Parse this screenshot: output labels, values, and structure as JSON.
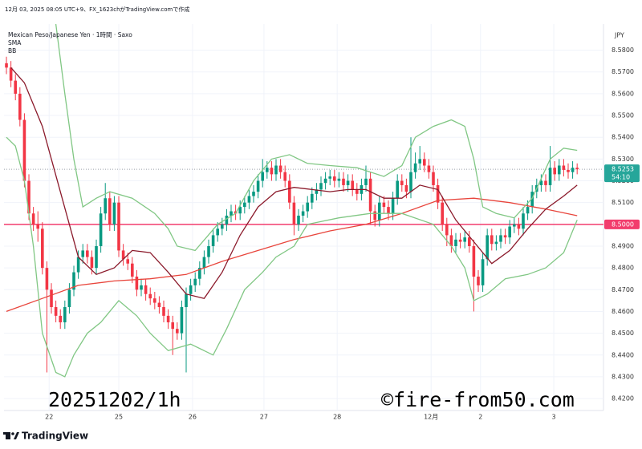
{
  "chart_data": {
    "type": "candlestick",
    "caption": "12月 03, 2025 08:05 UTC+9、FX_1623chがTradingView.comで作成",
    "title": "Mexican Peso/Japanese Yen · 1時間 · Saxo",
    "indicators": [
      "SMA",
      "BB"
    ],
    "y_axis_label": "JPY",
    "annotations": [
      "20251202/1h",
      "©fire-from50.com"
    ],
    "brand": "TradingView",
    "up_color": "#089981",
    "down_color": "#f23645",
    "grid": true,
    "xlim": [
      -0.54,
      132.86
    ],
    "ylim": [
      8.4145,
      8.592
    ],
    "xticks": [
      {
        "value": 9.5,
        "label": "22"
      },
      {
        "value": 25,
        "label": "25"
      },
      {
        "value": 41.4,
        "label": "26"
      },
      {
        "value": 57.3,
        "label": "27"
      },
      {
        "value": 73.6,
        "label": "28"
      },
      {
        "value": 94.5,
        "label": "12月"
      },
      {
        "value": 105.5,
        "label": "2"
      },
      {
        "value": 121.8,
        "label": "3"
      }
    ],
    "yticks": [
      {
        "value": 8.42,
        "label": "8.4200"
      },
      {
        "value": 8.43,
        "label": "8.4300"
      },
      {
        "value": 8.44,
        "label": "8.4400"
      },
      {
        "value": 8.45,
        "label": "8.4500"
      },
      {
        "value": 8.46,
        "label": "8.4600"
      },
      {
        "value": 8.47,
        "label": "8.4700"
      },
      {
        "value": 8.48,
        "label": "8.4800"
      },
      {
        "value": 8.49,
        "label": "8.4900"
      },
      {
        "value": 8.51,
        "label": "8.5100"
      },
      {
        "value": 8.52,
        "label": "8.5200"
      },
      {
        "value": 8.53,
        "label": "8.5300"
      },
      {
        "value": 8.54,
        "label": "8.5400"
      },
      {
        "value": 8.55,
        "label": "8.5500"
      },
      {
        "value": 8.56,
        "label": "8.5600"
      },
      {
        "value": 8.57,
        "label": "8.5700"
      },
      {
        "value": 8.58,
        "label": "8.5800"
      }
    ],
    "open": [
      8.574,
      8.572,
      8.566,
      8.56,
      8.548,
      8.52,
      8.505,
      8.5,
      8.498,
      8.48,
      8.47,
      8.462,
      8.458,
      8.455,
      8.462,
      8.47,
      8.478,
      8.485,
      8.488,
      8.485,
      8.48,
      8.49,
      8.505,
      8.512,
      8.5,
      8.51,
      8.488,
      8.484,
      8.482,
      8.476,
      8.47,
      8.472,
      8.468,
      8.466,
      8.464,
      8.462,
      8.458,
      8.455,
      8.452,
      8.45,
      8.462,
      8.468,
      8.472,
      8.475,
      8.48,
      8.485,
      8.49,
      8.495,
      8.498,
      8.5,
      8.504,
      8.506,
      8.505,
      8.508,
      8.51,
      8.513,
      8.515,
      8.52,
      8.524,
      8.526,
      8.523,
      8.527,
      8.524,
      8.52,
      8.51,
      8.5,
      8.504,
      8.506,
      8.51,
      8.514,
      8.516,
      8.519,
      8.521,
      8.522,
      8.52,
      8.521,
      8.518,
      8.52,
      8.516,
      8.514,
      8.518,
      8.521,
      8.506,
      8.502,
      8.51,
      8.508,
      8.505,
      8.512,
      8.52,
      8.518,
      8.515,
      8.524,
      8.528,
      8.53,
      8.527,
      8.524,
      8.518,
      8.51,
      8.5,
      8.495,
      8.49,
      8.493,
      8.492,
      8.494,
      8.49,
      8.476,
      8.472,
      8.484,
      8.495,
      8.491,
      8.492,
      8.495,
      8.494,
      8.499,
      8.5,
      8.498,
      8.505,
      8.508,
      8.515,
      8.518,
      8.52,
      8.518,
      8.526,
      8.523,
      8.527,
      8.525,
      8.524,
      8.526
    ],
    "high": [
      8.577,
      8.575,
      8.569,
      8.563,
      8.551,
      8.523,
      8.508,
      8.506,
      8.501,
      8.483,
      8.473,
      8.465,
      8.461,
      8.465,
      8.473,
      8.481,
      8.488,
      8.491,
      8.491,
      8.488,
      8.493,
      8.508,
      8.519,
      8.515,
      8.513,
      8.513,
      8.491,
      8.487,
      8.485,
      8.479,
      8.475,
      8.475,
      8.471,
      8.469,
      8.467,
      8.465,
      8.461,
      8.458,
      8.455,
      8.465,
      8.471,
      8.475,
      8.478,
      8.483,
      8.488,
      8.493,
      8.498,
      8.501,
      8.503,
      8.507,
      8.509,
      8.509,
      8.511,
      8.513,
      8.516,
      8.518,
      8.523,
      8.53,
      8.529,
      8.529,
      8.53,
      8.53,
      8.527,
      8.523,
      8.513,
      8.507,
      8.509,
      8.513,
      8.517,
      8.519,
      8.522,
      8.524,
      8.525,
      8.525,
      8.524,
      8.524,
      8.523,
      8.523,
      8.519,
      8.521,
      8.527,
      8.524,
      8.509,
      8.513,
      8.513,
      8.511,
      8.515,
      8.523,
      8.523,
      8.521,
      8.54,
      8.533,
      8.536,
      8.533,
      8.53,
      8.527,
      8.521,
      8.513,
      8.503,
      8.498,
      8.496,
      8.496,
      8.497,
      8.497,
      8.493,
      8.479,
      8.487,
      8.498,
      8.498,
      8.495,
      8.498,
      8.498,
      8.502,
      8.503,
      8.503,
      8.508,
      8.511,
      8.518,
      8.521,
      8.523,
      8.523,
      8.536,
      8.529,
      8.53,
      8.53,
      8.528,
      8.529,
      8.528
    ],
    "low": [
      8.569,
      8.563,
      8.557,
      8.545,
      8.517,
      8.502,
      8.497,
      8.492,
      8.477,
      8.432,
      8.459,
      8.455,
      8.452,
      8.452,
      8.459,
      8.467,
      8.475,
      8.482,
      8.482,
      8.477,
      8.477,
      8.487,
      8.502,
      8.497,
      8.497,
      8.485,
      8.481,
      8.479,
      8.473,
      8.467,
      8.467,
      8.465,
      8.463,
      8.461,
      8.459,
      8.455,
      8.452,
      8.44,
      8.447,
      8.447,
      8.432,
      8.465,
      8.469,
      8.472,
      8.477,
      8.482,
      8.487,
      8.492,
      8.495,
      8.497,
      8.501,
      8.502,
      8.502,
      8.505,
      8.507,
      8.51,
      8.512,
      8.517,
      8.521,
      8.52,
      8.52,
      8.521,
      8.517,
      8.507,
      8.495,
      8.497,
      8.501,
      8.503,
      8.507,
      8.511,
      8.513,
      8.516,
      8.518,
      8.517,
      8.517,
      8.515,
      8.515,
      8.513,
      8.511,
      8.511,
      8.515,
      8.5,
      8.499,
      8.499,
      8.505,
      8.502,
      8.502,
      8.509,
      8.515,
      8.512,
      8.512,
      8.521,
      8.525,
      8.524,
      8.521,
      8.515,
      8.507,
      8.497,
      8.49,
      8.487,
      8.487,
      8.489,
      8.489,
      8.487,
      8.46,
      8.469,
      8.469,
      8.481,
      8.488,
      8.488,
      8.489,
      8.491,
      8.491,
      8.496,
      8.495,
      8.495,
      8.502,
      8.505,
      8.512,
      8.515,
      8.515,
      8.515,
      8.52,
      8.52,
      8.522,
      8.521,
      8.521,
      8.523
    ],
    "close": [
      8.572,
      8.566,
      8.56,
      8.548,
      8.52,
      8.505,
      8.5,
      8.498,
      8.48,
      8.47,
      8.462,
      8.458,
      8.455,
      8.462,
      8.47,
      8.478,
      8.485,
      8.488,
      8.485,
      8.48,
      8.49,
      8.505,
      8.512,
      8.5,
      8.51,
      8.488,
      8.484,
      8.482,
      8.476,
      8.47,
      8.472,
      8.468,
      8.466,
      8.464,
      8.462,
      8.458,
      8.455,
      8.452,
      8.45,
      8.462,
      8.468,
      8.472,
      8.475,
      8.48,
      8.485,
      8.49,
      8.495,
      8.498,
      8.5,
      8.504,
      8.506,
      8.505,
      8.508,
      8.51,
      8.513,
      8.515,
      8.52,
      8.524,
      8.526,
      8.523,
      8.527,
      8.524,
      8.52,
      8.51,
      8.5,
      8.504,
      8.506,
      8.51,
      8.514,
      8.516,
      8.519,
      8.521,
      8.522,
      8.52,
      8.521,
      8.518,
      8.52,
      8.516,
      8.514,
      8.518,
      8.521,
      8.506,
      8.502,
      8.51,
      8.508,
      8.505,
      8.512,
      8.52,
      8.518,
      8.515,
      8.524,
      8.528,
      8.53,
      8.527,
      8.524,
      8.518,
      8.51,
      8.5,
      8.495,
      8.49,
      8.493,
      8.492,
      8.494,
      8.49,
      8.476,
      8.472,
      8.484,
      8.495,
      8.491,
      8.492,
      8.495,
      8.494,
      8.499,
      8.5,
      8.498,
      8.505,
      8.508,
      8.515,
      8.518,
      8.52,
      8.518,
      8.526,
      8.523,
      8.527,
      8.525,
      8.524,
      8.526,
      8.5253
    ],
    "lines": [
      {
        "color": "#e8453c",
        "x": [
          0,
          8,
          16,
          24,
          32,
          40,
          48,
          56,
          64,
          72,
          80,
          88,
          96,
          104,
          112,
          120,
          127
        ],
        "values": [
          8.46,
          8.466,
          8.472,
          8.474,
          8.475,
          8.477,
          8.483,
          8.488,
          8.493,
          8.497,
          8.5,
          8.505,
          8.511,
          8.512,
          8.51,
          8.507,
          8.504
        ]
      },
      {
        "color": "#8b1a2b",
        "x": [
          1,
          4,
          8,
          12,
          16,
          20,
          24,
          28,
          32,
          36,
          40,
          44,
          48,
          52,
          56,
          60,
          64,
          68,
          72,
          76,
          80,
          84,
          88,
          92,
          96,
          100,
          104,
          108,
          112,
          116,
          120,
          124,
          127
        ],
        "values": [
          8.572,
          8.565,
          8.545,
          8.515,
          8.485,
          8.477,
          8.48,
          8.488,
          8.487,
          8.478,
          8.468,
          8.466,
          8.478,
          8.495,
          8.508,
          8.515,
          8.517,
          8.516,
          8.515,
          8.516,
          8.516,
          8.512,
          8.512,
          8.518,
          8.516,
          8.502,
          8.492,
          8.482,
          8.488,
          8.498,
          8.507,
          8.513,
          8.518
        ]
      },
      {
        "color": "#81c784",
        "x": [
          11,
          13,
          15,
          17,
          20,
          23,
          28,
          33,
          36,
          38,
          42,
          47,
          51,
          55,
          59,
          63,
          67,
          72,
          78,
          84,
          88,
          91,
          95,
          99,
          102,
          104,
          106,
          109,
          113,
          117,
          121,
          124,
          127
        ],
        "values": [
          8.592,
          8.56,
          8.53,
          8.508,
          8.512,
          8.515,
          8.512,
          8.505,
          8.498,
          8.49,
          8.488,
          8.5,
          8.505,
          8.52,
          8.53,
          8.532,
          8.528,
          8.527,
          8.526,
          8.522,
          8.527,
          8.54,
          8.545,
          8.548,
          8.545,
          8.53,
          8.508,
          8.505,
          8.503,
          8.512,
          8.53,
          8.535,
          8.534
        ]
      },
      {
        "color": "#81c784",
        "x": [
          0,
          2,
          4,
          6,
          8,
          11,
          13,
          15,
          18,
          21,
          25,
          29,
          32,
          36,
          41,
          46,
          49,
          53,
          57,
          60,
          64,
          67,
          74,
          81,
          88,
          95,
          99,
          102,
          104,
          107,
          111,
          116,
          120,
          124,
          127
        ],
        "values": [
          8.54,
          8.536,
          8.52,
          8.49,
          8.45,
          8.432,
          8.43,
          8.44,
          8.45,
          8.455,
          8.465,
          8.458,
          8.45,
          8.442,
          8.445,
          8.44,
          8.452,
          8.47,
          8.478,
          8.485,
          8.49,
          8.5,
          8.503,
          8.505,
          8.505,
          8.5,
          8.49,
          8.48,
          8.465,
          8.468,
          8.475,
          8.477,
          8.48,
          8.487,
          8.502
        ]
      }
    ],
    "hline": {
      "value": 8.5,
      "label": "8.5000",
      "color": "#f23d6d"
    },
    "last_price": {
      "value": 8.5253,
      "countdown": "54:10",
      "color": "#26a69a"
    }
  }
}
